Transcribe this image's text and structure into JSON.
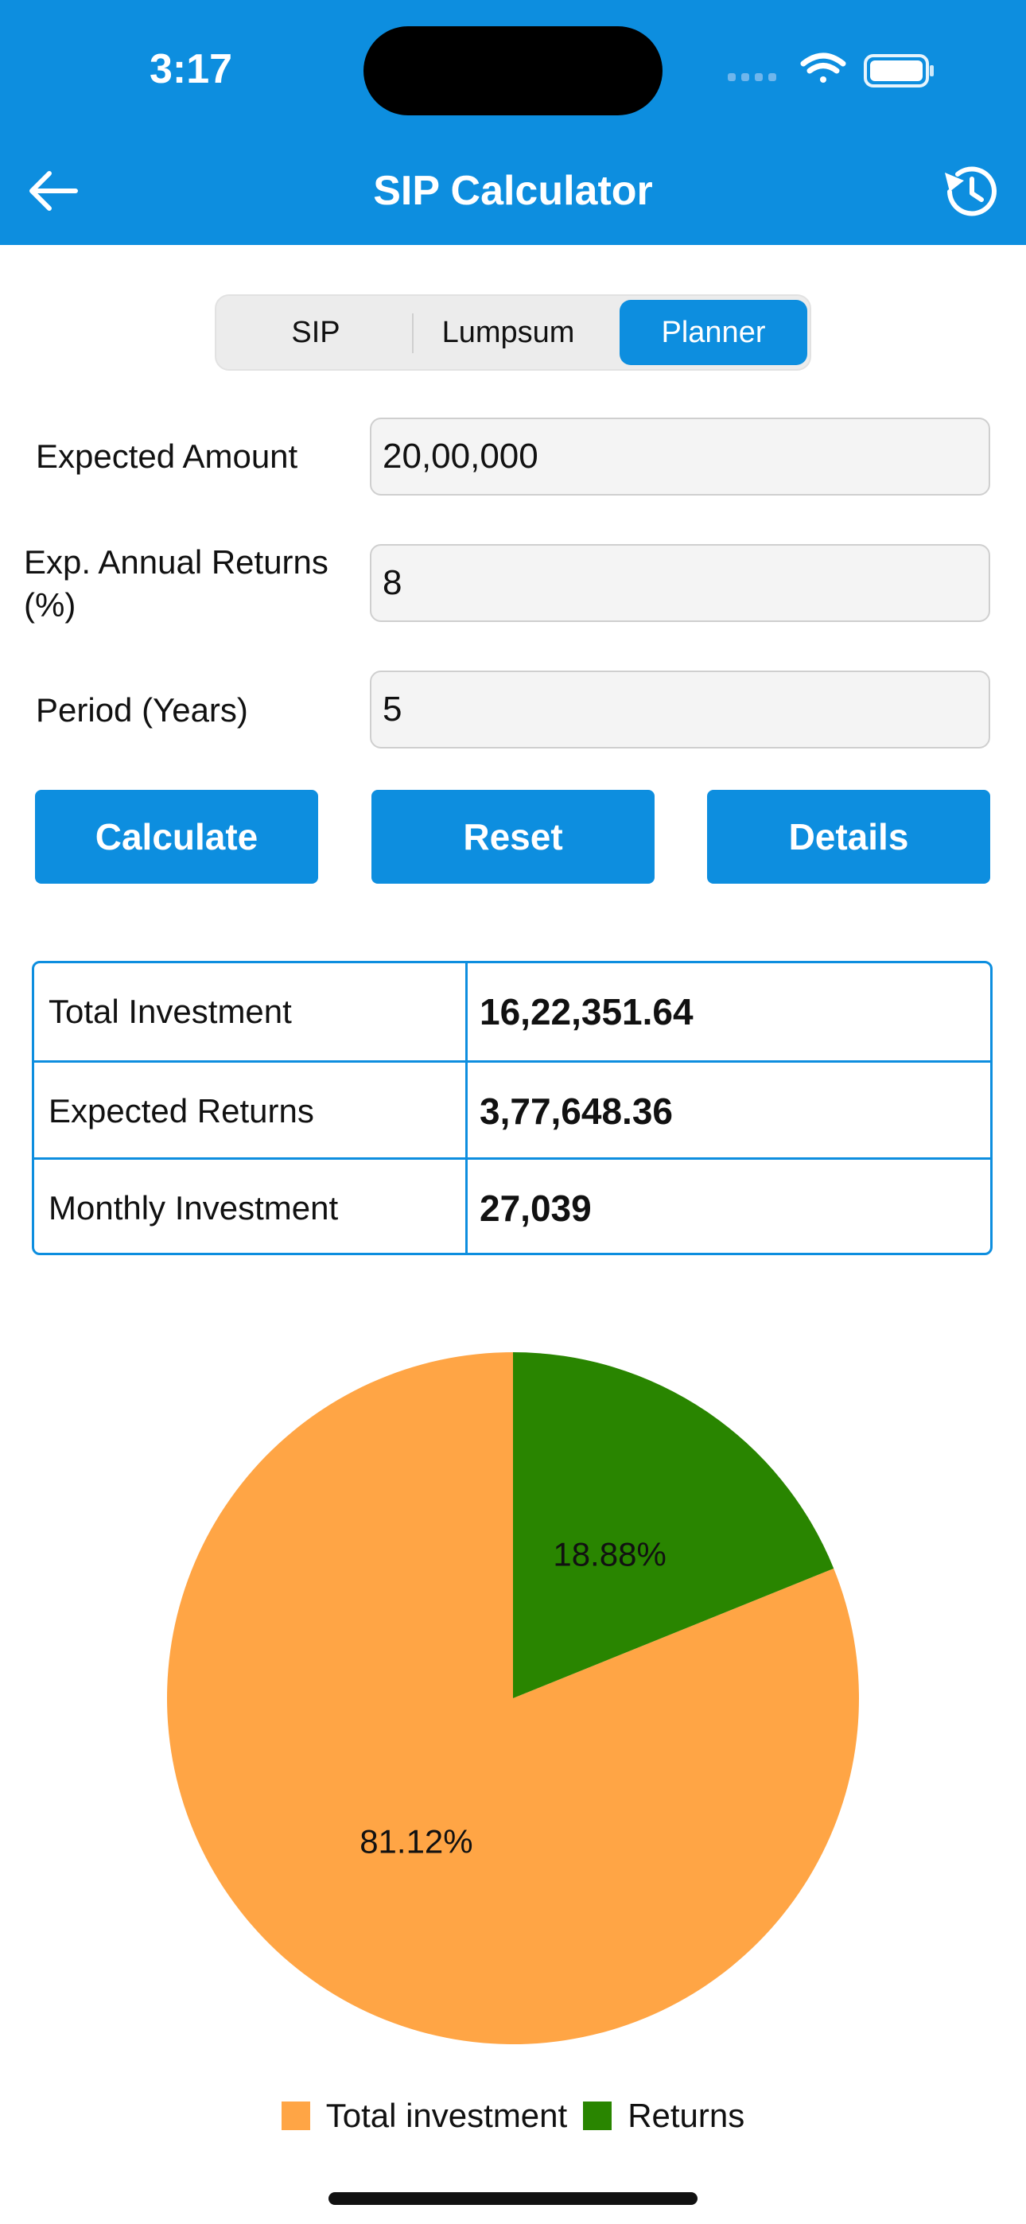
{
  "status_bar": {
    "time": "3:17"
  },
  "header": {
    "title": "SIP Calculator",
    "back_icon": "arrow-left-icon",
    "history_icon": "history-icon"
  },
  "tabs": [
    {
      "label": "SIP",
      "active": false
    },
    {
      "label": "Lumpsum",
      "active": false
    },
    {
      "label": "Planner",
      "active": true
    }
  ],
  "form": {
    "expected_amount": {
      "label": "Expected Amount",
      "value": "20,00,000"
    },
    "annual_returns": {
      "label": "Exp. Annual Returns (%)",
      "value": "8"
    },
    "period": {
      "label": "Period (Years)",
      "value": "5"
    }
  },
  "buttons": {
    "calculate": "Calculate",
    "reset": "Reset",
    "details": "Details"
  },
  "results": [
    {
      "label": "Total Investment",
      "value": "16,22,351.64"
    },
    {
      "label": "Expected Returns",
      "value": "3,77,648.36"
    },
    {
      "label": "Monthly Investment",
      "value": "27,039"
    }
  ],
  "chart_data": {
    "type": "pie",
    "categories": [
      "Total investment",
      "Returns"
    ],
    "values": [
      81.12,
      18.88
    ],
    "labels": [
      "81.12%",
      "18.88%"
    ],
    "colors": [
      "#ffa545",
      "#298500"
    ],
    "legend": "bottom-center"
  },
  "colors": {
    "accent": "#0d8edf"
  }
}
